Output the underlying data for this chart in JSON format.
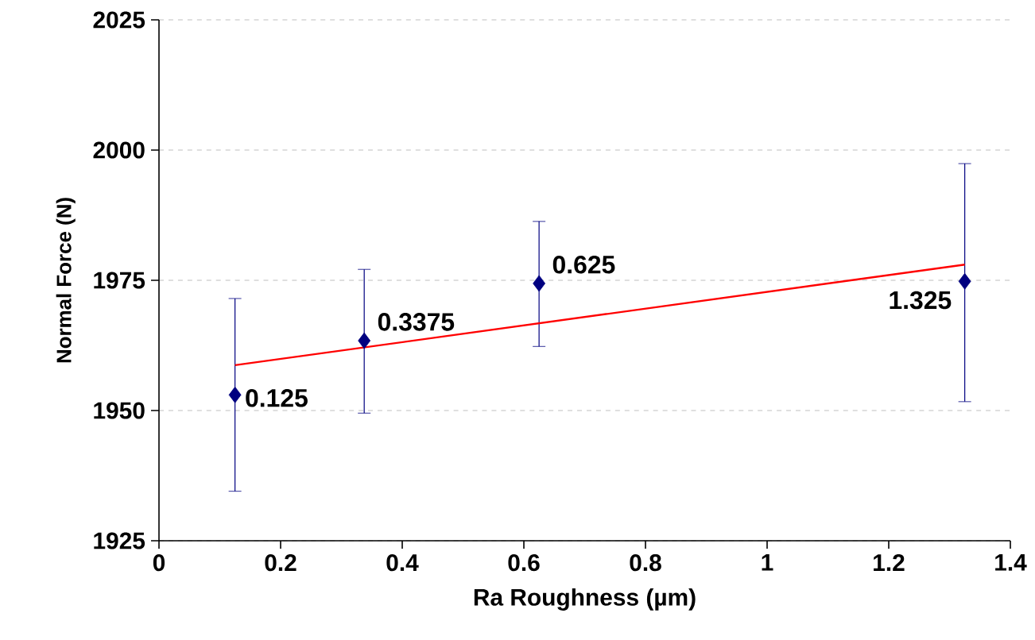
{
  "chart_data": {
    "type": "scatter",
    "xlabel": "Ra Roughness (µm)",
    "ylabel": "Normal Force (N)",
    "xlim": [
      0,
      1.4
    ],
    "ylim": [
      1925,
      2025
    ],
    "xticks": [
      0,
      0.2,
      0.4,
      0.6,
      0.8,
      1,
      1.2,
      1.4
    ],
    "yticks": [
      1925,
      1950,
      1975,
      2000,
      2025
    ],
    "grid": "y",
    "annotations": [
      {
        "text": "0.125",
        "x": 0.125,
        "y": 1953.0
      },
      {
        "text": "0.3375",
        "x": 0.3375,
        "y": 1963.4
      },
      {
        "text": "0.625",
        "x": 0.625,
        "y": 1974.4
      },
      {
        "text": "1.325",
        "x": 1.325,
        "y": 1974.8
      }
    ],
    "series": [
      {
        "color": "#000080",
        "marker": "diamond",
        "x": [
          0.125,
          0.3375,
          0.625,
          1.325
        ],
        "values": [
          1953.0,
          1963.4,
          1974.4,
          1974.8
        ],
        "errors": [
          [
            1934.5,
            1971.5
          ],
          [
            1949.5,
            1977.1
          ],
          [
            1962.3,
            1986.3
          ],
          [
            1951.7,
            1997.4
          ]
        ]
      },
      {
        "type": "line",
        "color": "#ff0000",
        "marker": "none",
        "line_style": "solid",
        "x": [
          0.125,
          1.325
        ],
        "values": [
          1958.7,
          1978.0
        ]
      }
    ]
  }
}
